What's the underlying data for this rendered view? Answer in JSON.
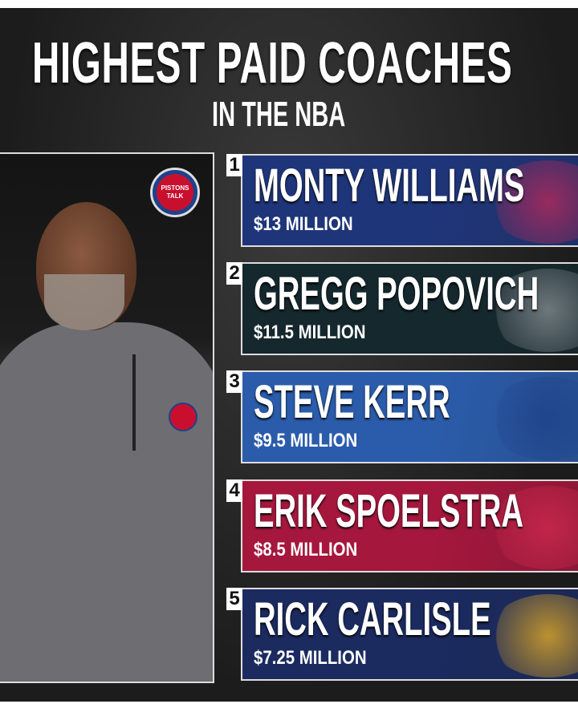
{
  "title": "HIGHEST PAID COACHES",
  "subtitle": "IN THE NBA",
  "photo_badge": "PISTONS TALK",
  "coaches": [
    {
      "rank": "1",
      "name": "MONTY WILLIAMS",
      "salary": "$13 MILLION",
      "team_logo": "DETROIT PISTONS",
      "color": "#1f3579",
      "logo_color": "#c0285a"
    },
    {
      "rank": "2",
      "name": "GREGG POPOVICH",
      "salary": "$11.5 MILLION",
      "team_logo": "SAN ANTONIO SPURS",
      "color": "#14282e",
      "logo_color": "#8a9296"
    },
    {
      "rank": "3",
      "name": "STEVE KERR",
      "salary": "$9.5 MILLION",
      "team_logo": "golden-state-warriors-logo",
      "color": "#2b5cab",
      "logo_color": "#1d428a"
    },
    {
      "rank": "4",
      "name": "ERIK SPOELSTRA",
      "salary": "$8.5 MILLION",
      "team_logo": "miami-heat-logo",
      "color": "#a6173d",
      "logo_color": "#d12a4f"
    },
    {
      "rank": "5",
      "name": "RICK CARLISLE",
      "salary": "$7.25 MILLION",
      "team_logo": "indiana-pacers-logo",
      "color": "#1b2b60",
      "logo_color": "#f0b323"
    }
  ]
}
